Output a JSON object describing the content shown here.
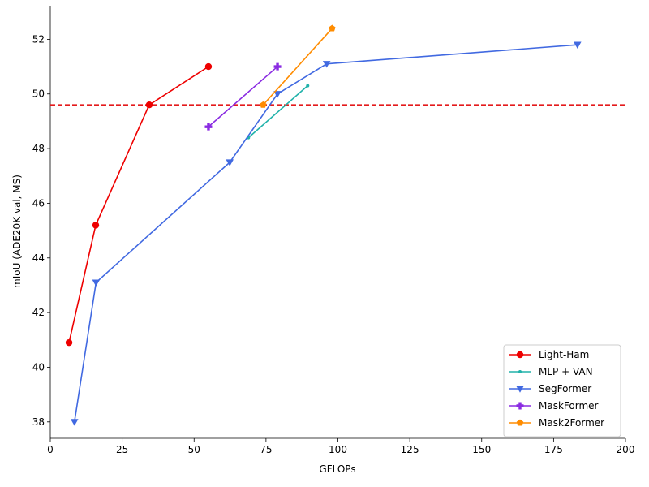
{
  "chart_data": {
    "type": "line",
    "title": "",
    "xlabel": "GFLOPs",
    "ylabel": "mIoU (ADE20K val, MS)",
    "xlim": [
      0,
      200
    ],
    "ylim": [
      37.4,
      53.2
    ],
    "xticks": [
      0,
      25,
      50,
      75,
      100,
      125,
      150,
      175,
      200
    ],
    "yticks": [
      38,
      40,
      42,
      44,
      46,
      48,
      50,
      52
    ],
    "grid": false,
    "legend_position": "lower-right",
    "reference_line": {
      "y": 49.6,
      "color": "#e41a1c",
      "style": "dashed"
    },
    "series": [
      {
        "name": "Light-Ham",
        "color": "#ee0000",
        "marker": "circle",
        "x": [
          6.5,
          15.8,
          34.4,
          55.0
        ],
        "y": [
          40.9,
          45.2,
          49.6,
          51.0
        ]
      },
      {
        "name": "MLP + VAN",
        "color": "#20b2aa",
        "marker": "point",
        "x": [
          68.9,
          89.5
        ],
        "y": [
          48.4,
          50.3
        ]
      },
      {
        "name": "SegFormer",
        "color": "#4169e1",
        "marker": "triangle-down",
        "x": [
          8.4,
          15.9,
          62.4,
          79.0,
          96.1,
          183.3
        ],
        "y": [
          38.0,
          43.1,
          47.5,
          50.0,
          51.1,
          51.8
        ]
      },
      {
        "name": "MaskFormer",
        "color": "#8a2be2",
        "marker": "plus",
        "x": [
          55.0,
          79.0
        ],
        "y": [
          48.8,
          51.0
        ]
      },
      {
        "name": "Mask2Former",
        "color": "#ff8c00",
        "marker": "pentagon",
        "x": [
          74.0,
          98.0
        ],
        "y": [
          49.6,
          52.4
        ]
      }
    ]
  }
}
